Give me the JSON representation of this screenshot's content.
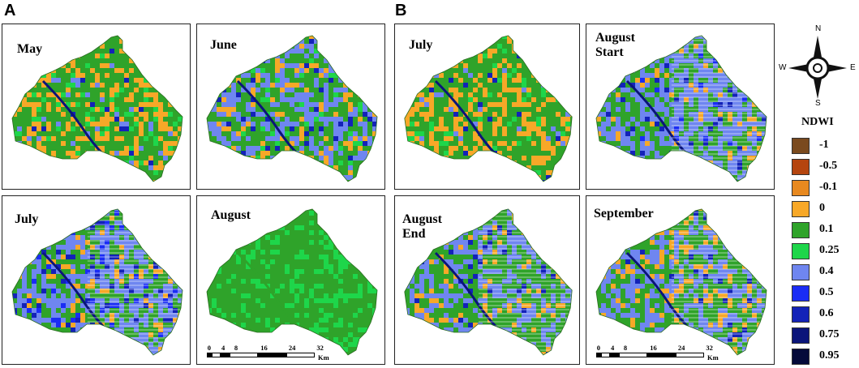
{
  "sections": [
    {
      "label": "A"
    },
    {
      "label": "B"
    }
  ],
  "panels": [
    {
      "id": "a-may",
      "title": "May",
      "style": "may"
    },
    {
      "id": "a-june",
      "title": "June",
      "style": "june"
    },
    {
      "id": "a-july",
      "title": "July",
      "style": "julyA"
    },
    {
      "id": "a-august",
      "title": "August",
      "style": "august",
      "scalebar": true
    },
    {
      "id": "b-july",
      "title": "July",
      "style": "julyB"
    },
    {
      "id": "b-aug-start",
      "title": "August\nStart",
      "title_lines": [
        "August",
        "Start"
      ],
      "style": "augStart"
    },
    {
      "id": "b-aug-end",
      "title": "August\nEnd",
      "title_lines": [
        "August",
        "End"
      ],
      "style": "augEnd"
    },
    {
      "id": "b-september",
      "title": "September",
      "style": "september",
      "scalebar": true
    }
  ],
  "scalebar": {
    "ticks": [
      "0",
      "4",
      "8",
      "16",
      "24",
      "32"
    ],
    "unit": "Km"
  },
  "compass": {
    "n": "N",
    "s": "S",
    "e": "E",
    "w": "W"
  },
  "legend": {
    "title": "NDWI",
    "items": [
      {
        "label": "-1",
        "color": "#7a4a1e"
      },
      {
        "label": "-0.5",
        "color": "#b5450f"
      },
      {
        "label": "-0.1",
        "color": "#e8891f"
      },
      {
        "label": "0",
        "color": "#f7a828"
      },
      {
        "label": "0.1",
        "color": "#2fa32a"
      },
      {
        "label": "0.25",
        "color": "#1ed64a"
      },
      {
        "label": "0.4",
        "color": "#6f86f0"
      },
      {
        "label": "0.5",
        "color": "#1a2cf5"
      },
      {
        "label": "0.6",
        "color": "#1322b8"
      },
      {
        "label": "0.75",
        "color": "#0b157a"
      },
      {
        "label": "0.95",
        "color": "#050a3a"
      }
    ]
  }
}
